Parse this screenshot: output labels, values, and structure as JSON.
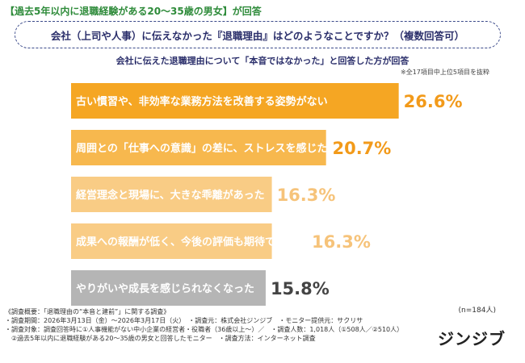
{
  "header": {
    "tag": "【過去5年以内に退職経験がある20〜35歳の男女】が回答",
    "question": "会社（上司や人事）に伝えなかった『退職理由』はどのようなことですか？（複数回答可）",
    "subtitle": "会社に伝えた退職理由について「本音ではなかった」と回答した方が回答",
    "note": "※全17項目中上位5項目を抜粋"
  },
  "chart_data": {
    "type": "bar",
    "orientation": "horizontal",
    "categories": [
      "古い慣習や、非効率な業務方法を改善する姿勢がない",
      "周囲との「仕事への意識」の差に、ストレスを感じた",
      "経営理念と現場に、大きな乖離があった",
      "成果への報酬が低く、今後の評価も期待できない",
      "やりがいや成長を感じられなくなった"
    ],
    "values": [
      26.6,
      20.7,
      16.3,
      16.3,
      15.8
    ],
    "value_labels": [
      "26.6%",
      "20.7%",
      "16.3%",
      "16.3%",
      "15.8%"
    ],
    "colors": [
      "#f5a623",
      "#f7b84e",
      "#f9cc85",
      "#f9cc85",
      "#b5b5b5"
    ],
    "value_colors": [
      "#f29a1a",
      "#f29a1a",
      "#f6c37a",
      "#f6c37a",
      "#444444"
    ],
    "n_label": "(n=184人)"
  },
  "footer": {
    "lines": [
      "《調査概要：「退職理由の“本音と建前”」に関する調査》",
      "・調査期間：2026年3月13日（金）〜2026年3月17日（火）　・調査元：株式会社ジンジブ　・モニター提供元：サクリサ",
      "・調査対象：調査回答時に①人事機能がない中小企業の経営者・役職者（36歳以上〜）／　・調査人数：1,018人（①508人／②510人）",
      "　②過去5年以内に退職経験がある20〜35歳の男女と回答したモニター　・調査方法：インターネット調査"
    ],
    "logo": "ジンジブ"
  }
}
